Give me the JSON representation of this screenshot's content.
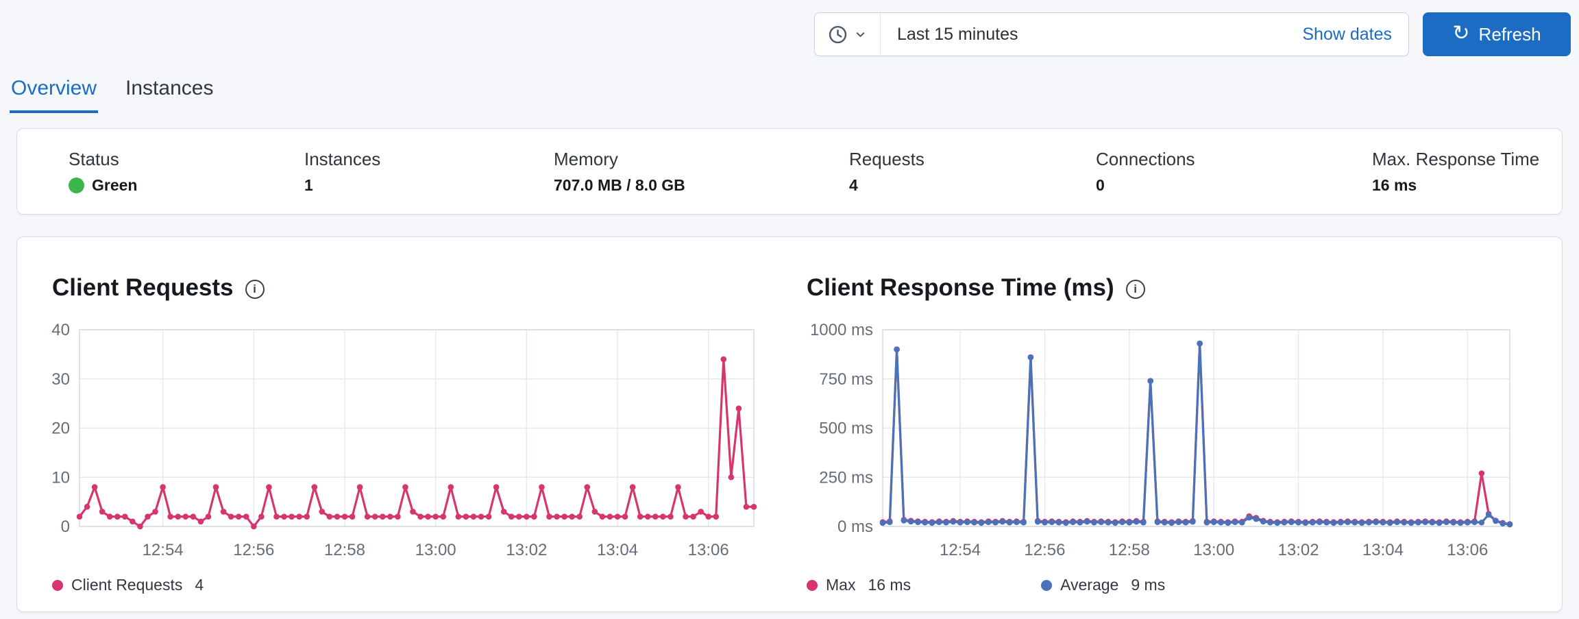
{
  "colors": {
    "accent": "#1c6cc4",
    "pink": "#d6356e",
    "blue": "#4a72b8",
    "green": "#3cb54a",
    "text": "#343741",
    "heading": "#16191f",
    "muted": "#666d79",
    "border": "#d6dce6",
    "grid": "#e4e8ef",
    "frame": "#d4dae4",
    "page_bg": "#f5f7fa"
  },
  "icons": {
    "refresh_glyph": "↻",
    "info_glyph": "i"
  },
  "time_picker": {
    "selected_range": "Last 15 minutes",
    "show_dates": "Show dates",
    "refresh": "Refresh"
  },
  "tabs": [
    {
      "label": "Overview",
      "active": true
    },
    {
      "label": "Instances",
      "active": false
    }
  ],
  "stats": [
    {
      "label": "Status",
      "value": "Green"
    },
    {
      "label": "Instances",
      "value": "1"
    },
    {
      "label": "Memory",
      "value": "707.0 MB / 8.0 GB"
    },
    {
      "label": "Requests",
      "value": "4"
    },
    {
      "label": "Connections",
      "value": "0"
    },
    {
      "label": "Max. Response Time",
      "value": "16 ms"
    }
  ],
  "chart_data": [
    {
      "type": "line",
      "title": "Client Requests",
      "x_tick_labels": [
        "12:54",
        "12:56",
        "12:58",
        "13:00",
        "13:02",
        "13:04",
        "13:06"
      ],
      "tick_indices": [
        11,
        23,
        35,
        47,
        59,
        71,
        83
      ],
      "x_range": [
        "12:52",
        "13:07"
      ],
      "point_interval_seconds": 10,
      "ylim": [
        0,
        40
      ],
      "yticks": [
        0,
        10,
        20,
        30,
        40
      ],
      "ytick_labels": [
        "0",
        "10",
        "20",
        "30",
        "40"
      ],
      "grid": true,
      "series": [
        {
          "name": "Client Requests",
          "color": "#d6356e",
          "values": [
            2,
            4,
            8,
            3,
            2,
            2,
            2,
            1,
            0,
            2,
            3,
            8,
            2,
            2,
            2,
            2,
            1,
            2,
            8,
            3,
            2,
            2,
            2,
            0,
            2,
            8,
            2,
            2,
            2,
            2,
            2,
            8,
            3,
            2,
            2,
            2,
            2,
            8,
            2,
            2,
            2,
            2,
            2,
            8,
            3,
            2,
            2,
            2,
            2,
            8,
            2,
            2,
            2,
            2,
            2,
            8,
            3,
            2,
            2,
            2,
            2,
            8,
            2,
            2,
            2,
            2,
            2,
            8,
            3,
            2,
            2,
            2,
            2,
            8,
            2,
            2,
            2,
            2,
            2,
            8,
            2,
            2,
            3,
            2,
            2,
            34,
            10,
            24,
            4,
            4
          ]
        }
      ],
      "legend": [
        {
          "name": "Client Requests",
          "value": "4",
          "color": "#d6356e"
        }
      ]
    },
    {
      "type": "line",
      "title": "Client Response Time (ms)",
      "x_tick_labels": [
        "12:54",
        "12:56",
        "12:58",
        "13:00",
        "13:02",
        "13:04",
        "13:06"
      ],
      "tick_indices": [
        11,
        23,
        35,
        47,
        59,
        71,
        83
      ],
      "x_range": [
        "12:52",
        "13:07"
      ],
      "point_interval_seconds": 10,
      "ylim": [
        0,
        1000
      ],
      "yticks": [
        0,
        250,
        500,
        750,
        1000
      ],
      "ytick_labels": [
        "0 ms",
        "250 ms",
        "500 ms",
        "750 ms",
        "1000 ms"
      ],
      "grid": true,
      "series": [
        {
          "name": "Max",
          "color": "#d6356e",
          "values": [
            22,
            26,
            900,
            34,
            29,
            26,
            24,
            22,
            26,
            24,
            28,
            24,
            26,
            24,
            22,
            26,
            24,
            28,
            24,
            26,
            24,
            860,
            28,
            24,
            26,
            24,
            22,
            26,
            24,
            28,
            24,
            26,
            24,
            22,
            26,
            24,
            28,
            24,
            740,
            26,
            24,
            22,
            26,
            24,
            28,
            930,
            24,
            26,
            24,
            22,
            26,
            24,
            52,
            44,
            29,
            24,
            22,
            24,
            26,
            24,
            22,
            24,
            26,
            24,
            22,
            24,
            26,
            24,
            22,
            24,
            26,
            24,
            22,
            26,
            24,
            22,
            24,
            26,
            24,
            22,
            26,
            24,
            22,
            24,
            26,
            270,
            64,
            30,
            18,
            12
          ]
        },
        {
          "name": "Average",
          "color": "#4a72b8",
          "values": [
            18,
            22,
            900,
            30,
            25,
            22,
            20,
            18,
            22,
            20,
            24,
            20,
            22,
            20,
            18,
            22,
            20,
            24,
            20,
            22,
            20,
            860,
            24,
            20,
            22,
            20,
            18,
            22,
            20,
            24,
            20,
            22,
            20,
            18,
            22,
            20,
            24,
            20,
            740,
            22,
            20,
            18,
            22,
            20,
            24,
            930,
            20,
            22,
            20,
            18,
            22,
            20,
            45,
            38,
            25,
            20,
            18,
            20,
            22,
            20,
            18,
            20,
            22,
            20,
            18,
            20,
            22,
            20,
            18,
            20,
            22,
            20,
            18,
            22,
            20,
            18,
            20,
            22,
            20,
            18,
            22,
            20,
            18,
            20,
            22,
            20,
            60,
            28,
            15,
            10
          ]
        }
      ],
      "legend": [
        {
          "name": "Max",
          "value": "16 ms",
          "color": "#d6356e"
        },
        {
          "name": "Average",
          "value": "9 ms",
          "color": "#4a72b8"
        }
      ]
    }
  ]
}
